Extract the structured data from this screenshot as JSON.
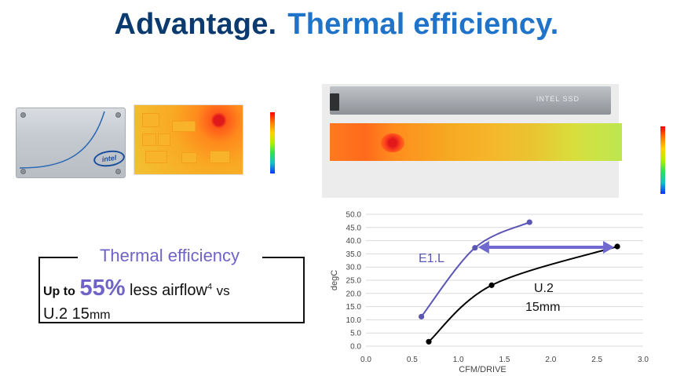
{
  "title": {
    "part1": "Advantage.",
    "part2": "Thermal efficiency."
  },
  "u2_drive": {
    "logo_text": "intel"
  },
  "e1l_drive": {
    "label": "INTEL SSD"
  },
  "thermal_box": {
    "heading": "Thermal efficiency",
    "prefix": "Up to",
    "percent": "55%",
    "airflow_text": "less airflow",
    "footnote": "4",
    "vs": "vs",
    "line2_main": "U.2 15",
    "line2_unit": "mm"
  },
  "colors": {
    "title_dark": "#0b3a6e",
    "title_accent": "#1f73c9",
    "purple": "#6f63c7",
    "e1l_line": "#5b55b5",
    "u2_line": "#000000"
  },
  "chart_data": {
    "type": "line",
    "xlabel": "CFM/DRIVE",
    "ylabel": "degC",
    "xlim": [
      0,
      3.0
    ],
    "ylim": [
      0,
      50
    ],
    "x_ticks": [
      "0.0",
      "0.5",
      "1.0",
      "1.5",
      "2.0",
      "2.5",
      "3.0"
    ],
    "y_ticks": [
      "0.0",
      "5.0",
      "10.0",
      "15.0",
      "20.0",
      "25.0",
      "30.0",
      "35.0",
      "40.0",
      "45.0",
      "50.0"
    ],
    "grid": "horizontal",
    "series": [
      {
        "name": "E1.L",
        "color": "#5b55b5",
        "x": [
          0.6,
          1.18,
          1.77
        ],
        "y": [
          11.2,
          37.3,
          47.0
        ]
      },
      {
        "name": "U.2 15mm",
        "color": "#000000",
        "x": [
          0.68,
          1.36,
          2.72
        ],
        "y": [
          1.7,
          23.1,
          37.8
        ]
      }
    ],
    "annotations": [
      {
        "text": "E1.L"
      },
      {
        "text": "U.2"
      },
      {
        "text": "15mm"
      }
    ]
  }
}
